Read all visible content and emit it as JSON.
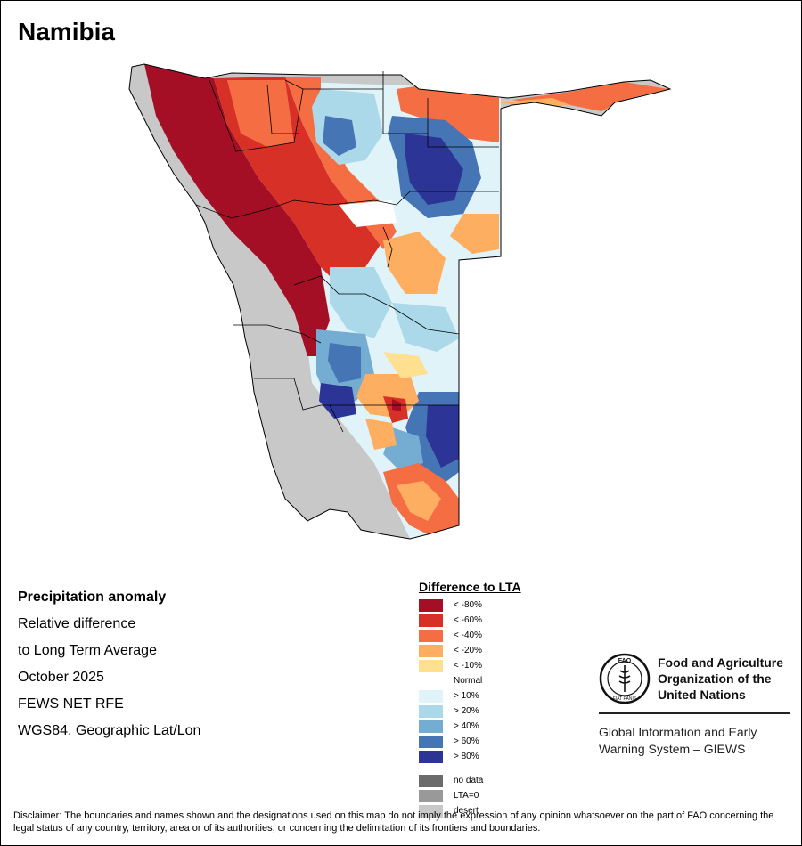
{
  "title": "Namibia",
  "info": {
    "heading": "Precipitation anomaly",
    "line1": "Relative difference",
    "line2": "to Long Term Average",
    "period": "October 2025",
    "source": "FEWS NET RFE",
    "projection": "WGS84, Geographic Lat/Lon"
  },
  "legend": {
    "title": "Difference to LTA",
    "classes": [
      {
        "label": "< -80%",
        "color": "#a50f26"
      },
      {
        "label": "< -60%",
        "color": "#d73027"
      },
      {
        "label": "< -40%",
        "color": "#f46d43"
      },
      {
        "label": "< -20%",
        "color": "#fdae61"
      },
      {
        "label": "< -10%",
        "color": "#fee090"
      },
      {
        "label": "Normal",
        "color": "#ffffff"
      },
      {
        "label": "> 10%",
        "color": "#e0f3f8"
      },
      {
        "label": "> 20%",
        "color": "#abd9e9"
      },
      {
        "label": "> 40%",
        "color": "#74add1"
      },
      {
        "label": "> 60%",
        "color": "#4575b4"
      },
      {
        "label": "> 80%",
        "color": "#2c3596"
      }
    ],
    "other": [
      {
        "label": "no data",
        "color": "#6b6b6b"
      },
      {
        "label": "LTA=0",
        "color": "#999999"
      },
      {
        "label": "desert",
        "color": "#c8c8c8"
      }
    ]
  },
  "org": {
    "name_line1": "Food and Agriculture",
    "name_line2": "Organization of the",
    "name_line3": "United Nations",
    "logo_text": "FAO",
    "logo_motto": "FIAT PANIS",
    "system_line1": "Global Information and Early",
    "system_line2": "Warning System – GIEWS"
  },
  "disclaimer": "Disclaimer: The boundaries and names shown and the designations used on this map do not imply the expression of any opinion whatsoever on the part of FAO concerning the legal status of any country, territory, area or of its authorities, or concerning the delimitation of its frontiers and boundaries.",
  "colors": {
    "desert": "#c8c8c8",
    "boundary": "#000000"
  }
}
